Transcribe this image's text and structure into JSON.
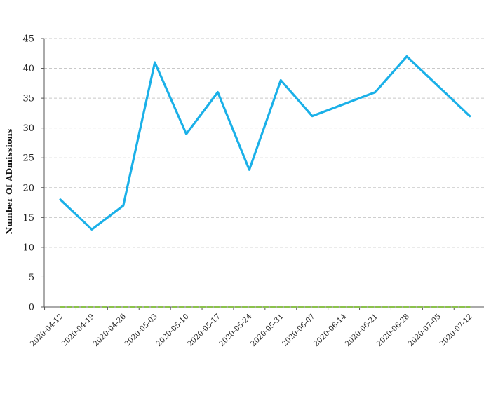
{
  "chart_data": {
    "type": "line",
    "title": "",
    "xlabel": "",
    "ylabel": "Number Of ADmissions",
    "categories": [
      "2020-04-12",
      "2020-04-19",
      "2020-04-26",
      "2020-05-03",
      "2020-05-10",
      "2020-05-17",
      "2020-05-24",
      "2020-05-31",
      "2020-06-07",
      "2020-06-14",
      "2020-06-21",
      "2020-06-28",
      "2020-07-05",
      "2020-07-12"
    ],
    "ylim": [
      0,
      45
    ],
    "yticks": [
      0,
      5,
      10,
      15,
      20,
      25,
      30,
      35,
      40,
      45
    ],
    "grid": "horizontal dashed",
    "legend": "none",
    "series": [
      {
        "color": "#1ab0e8",
        "dash": "",
        "values": [
          18,
          13,
          17,
          41,
          29,
          36,
          23,
          38,
          32,
          34,
          36,
          42,
          37,
          32
        ]
      },
      {
        "color": "#8bc34a",
        "dash": "6 4",
        "values": [
          0,
          0,
          0,
          0,
          0,
          0,
          0,
          0,
          0,
          0,
          0,
          0,
          0,
          0
        ]
      },
      {
        "color": "#8e5fbf",
        "dash": "6 4",
        "values": [
          0,
          0,
          0,
          0,
          0,
          0,
          0,
          0,
          0,
          0,
          0,
          0,
          0,
          0
        ]
      }
    ]
  }
}
